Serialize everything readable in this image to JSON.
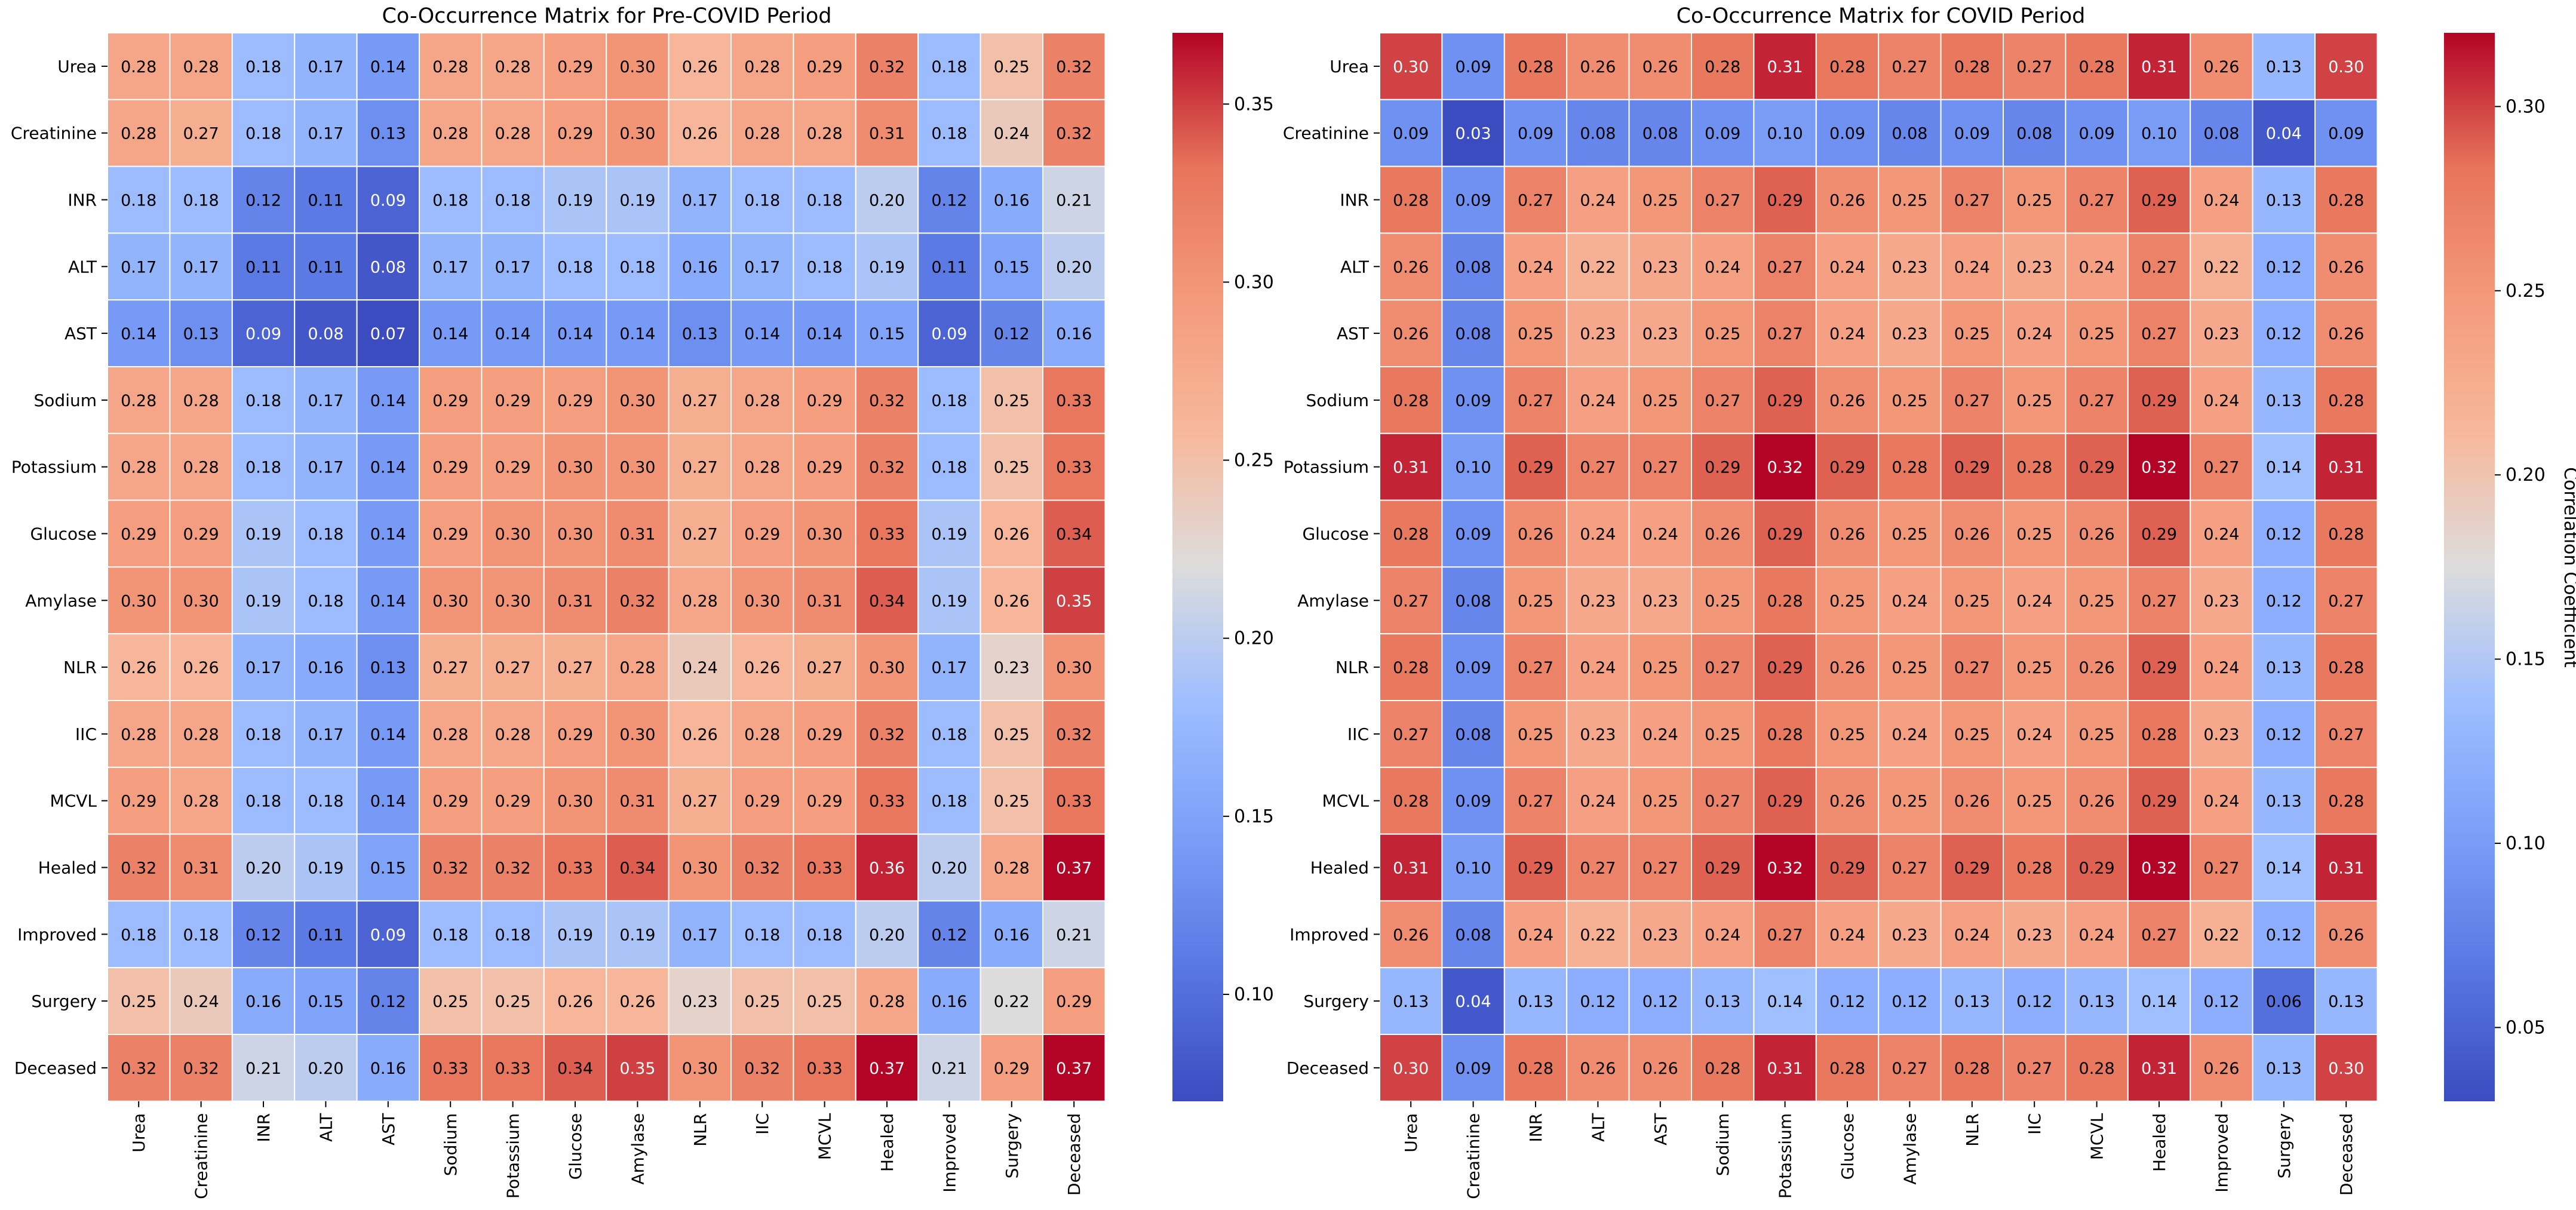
{
  "chart_data": [
    {
      "type": "heatmap",
      "title": "Co-Occurrence Matrix for Pre-COVID Period",
      "xlabel": "",
      "ylabel": "",
      "colormap": "coolwarm",
      "rows": [
        "Urea",
        "Creatinine",
        "INR",
        "ALT",
        "AST",
        "Sodium",
        "Potassium",
        "Glucose",
        "Amylase",
        "NLR",
        "IIC",
        "MCVL",
        "Healed",
        "Improved",
        "Surgery",
        "Deceased"
      ],
      "cols": [
        "Urea",
        "Creatinine",
        "INR",
        "ALT",
        "AST",
        "Sodium",
        "Potassium",
        "Glucose",
        "Amylase",
        "NLR",
        "IIC",
        "MCVL",
        "Healed",
        "Improved",
        "Surgery",
        "Deceased"
      ],
      "values": [
        [
          0.28,
          0.28,
          0.18,
          0.17,
          0.14,
          0.28,
          0.28,
          0.29,
          0.3,
          0.26,
          0.28,
          0.29,
          0.32,
          0.18,
          0.25,
          0.32
        ],
        [
          0.28,
          0.27,
          0.18,
          0.17,
          0.13,
          0.28,
          0.28,
          0.29,
          0.3,
          0.26,
          0.28,
          0.28,
          0.31,
          0.18,
          0.24,
          0.32
        ],
        [
          0.18,
          0.18,
          0.12,
          0.11,
          0.09,
          0.18,
          0.18,
          0.19,
          0.19,
          0.17,
          0.18,
          0.18,
          0.2,
          0.12,
          0.16,
          0.21
        ],
        [
          0.17,
          0.17,
          0.11,
          0.11,
          0.08,
          0.17,
          0.17,
          0.18,
          0.18,
          0.16,
          0.17,
          0.18,
          0.19,
          0.11,
          0.15,
          0.2
        ],
        [
          0.14,
          0.13,
          0.09,
          0.08,
          0.07,
          0.14,
          0.14,
          0.14,
          0.14,
          0.13,
          0.14,
          0.14,
          0.15,
          0.09,
          0.12,
          0.16
        ],
        [
          0.28,
          0.28,
          0.18,
          0.17,
          0.14,
          0.29,
          0.29,
          0.29,
          0.3,
          0.27,
          0.28,
          0.29,
          0.32,
          0.18,
          0.25,
          0.33
        ],
        [
          0.28,
          0.28,
          0.18,
          0.17,
          0.14,
          0.29,
          0.29,
          0.3,
          0.3,
          0.27,
          0.28,
          0.29,
          0.32,
          0.18,
          0.25,
          0.33
        ],
        [
          0.29,
          0.29,
          0.19,
          0.18,
          0.14,
          0.29,
          0.3,
          0.3,
          0.31,
          0.27,
          0.29,
          0.3,
          0.33,
          0.19,
          0.26,
          0.34
        ],
        [
          0.3,
          0.3,
          0.19,
          0.18,
          0.14,
          0.3,
          0.3,
          0.31,
          0.32,
          0.28,
          0.3,
          0.31,
          0.34,
          0.19,
          0.26,
          0.35
        ],
        [
          0.26,
          0.26,
          0.17,
          0.16,
          0.13,
          0.27,
          0.27,
          0.27,
          0.28,
          0.24,
          0.26,
          0.27,
          0.3,
          0.17,
          0.23,
          0.3
        ],
        [
          0.28,
          0.28,
          0.18,
          0.17,
          0.14,
          0.28,
          0.28,
          0.29,
          0.3,
          0.26,
          0.28,
          0.29,
          0.32,
          0.18,
          0.25,
          0.32
        ],
        [
          0.29,
          0.28,
          0.18,
          0.18,
          0.14,
          0.29,
          0.29,
          0.3,
          0.31,
          0.27,
          0.29,
          0.29,
          0.33,
          0.18,
          0.25,
          0.33
        ],
        [
          0.32,
          0.31,
          0.2,
          0.19,
          0.15,
          0.32,
          0.32,
          0.33,
          0.34,
          0.3,
          0.32,
          0.33,
          0.36,
          0.2,
          0.28,
          0.37
        ],
        [
          0.18,
          0.18,
          0.12,
          0.11,
          0.09,
          0.18,
          0.18,
          0.19,
          0.19,
          0.17,
          0.18,
          0.18,
          0.2,
          0.12,
          0.16,
          0.21
        ],
        [
          0.25,
          0.24,
          0.16,
          0.15,
          0.12,
          0.25,
          0.25,
          0.26,
          0.26,
          0.23,
          0.25,
          0.25,
          0.28,
          0.16,
          0.22,
          0.29
        ],
        [
          0.32,
          0.32,
          0.21,
          0.2,
          0.16,
          0.33,
          0.33,
          0.34,
          0.35,
          0.3,
          0.32,
          0.33,
          0.37,
          0.21,
          0.29,
          0.37
        ]
      ],
      "vmin": 0.07,
      "vmax": 0.37,
      "colorbar": {
        "ticks": [
          0.1,
          0.15,
          0.2,
          0.25,
          0.3,
          0.35
        ],
        "tick_labels": [
          "0.10",
          "0.15",
          "0.20",
          "0.25",
          "0.30",
          "0.35"
        ],
        "label": ""
      }
    },
    {
      "type": "heatmap",
      "title": "Co-Occurrence Matrix for COVID Period",
      "xlabel": "",
      "ylabel": "",
      "colormap": "coolwarm",
      "rows": [
        "Urea",
        "Creatinine",
        "INR",
        "ALT",
        "AST",
        "Sodium",
        "Potassium",
        "Glucose",
        "Amylase",
        "NLR",
        "IIC",
        "MCVL",
        "Healed",
        "Improved",
        "Surgery",
        "Deceased"
      ],
      "cols": [
        "Urea",
        "Creatinine",
        "INR",
        "ALT",
        "AST",
        "Sodium",
        "Potassium",
        "Glucose",
        "Amylase",
        "NLR",
        "IIC",
        "MCVL",
        "Healed",
        "Improved",
        "Surgery",
        "Deceased"
      ],
      "values": [
        [
          0.3,
          0.09,
          0.28,
          0.26,
          0.26,
          0.28,
          0.31,
          0.28,
          0.27,
          0.28,
          0.27,
          0.28,
          0.31,
          0.26,
          0.13,
          0.3
        ],
        [
          0.09,
          0.03,
          0.09,
          0.08,
          0.08,
          0.09,
          0.1,
          0.09,
          0.08,
          0.09,
          0.08,
          0.09,
          0.1,
          0.08,
          0.04,
          0.09
        ],
        [
          0.28,
          0.09,
          0.27,
          0.24,
          0.25,
          0.27,
          0.29,
          0.26,
          0.25,
          0.27,
          0.25,
          0.27,
          0.29,
          0.24,
          0.13,
          0.28
        ],
        [
          0.26,
          0.08,
          0.24,
          0.22,
          0.23,
          0.24,
          0.27,
          0.24,
          0.23,
          0.24,
          0.23,
          0.24,
          0.27,
          0.22,
          0.12,
          0.26
        ],
        [
          0.26,
          0.08,
          0.25,
          0.23,
          0.23,
          0.25,
          0.27,
          0.24,
          0.23,
          0.25,
          0.24,
          0.25,
          0.27,
          0.23,
          0.12,
          0.26
        ],
        [
          0.28,
          0.09,
          0.27,
          0.24,
          0.25,
          0.27,
          0.29,
          0.26,
          0.25,
          0.27,
          0.25,
          0.27,
          0.29,
          0.24,
          0.13,
          0.28
        ],
        [
          0.31,
          0.1,
          0.29,
          0.27,
          0.27,
          0.29,
          0.32,
          0.29,
          0.28,
          0.29,
          0.28,
          0.29,
          0.32,
          0.27,
          0.14,
          0.31
        ],
        [
          0.28,
          0.09,
          0.26,
          0.24,
          0.24,
          0.26,
          0.29,
          0.26,
          0.25,
          0.26,
          0.25,
          0.26,
          0.29,
          0.24,
          0.12,
          0.28
        ],
        [
          0.27,
          0.08,
          0.25,
          0.23,
          0.23,
          0.25,
          0.28,
          0.25,
          0.24,
          0.25,
          0.24,
          0.25,
          0.27,
          0.23,
          0.12,
          0.27
        ],
        [
          0.28,
          0.09,
          0.27,
          0.24,
          0.25,
          0.27,
          0.29,
          0.26,
          0.25,
          0.27,
          0.25,
          0.26,
          0.29,
          0.24,
          0.13,
          0.28
        ],
        [
          0.27,
          0.08,
          0.25,
          0.23,
          0.24,
          0.25,
          0.28,
          0.25,
          0.24,
          0.25,
          0.24,
          0.25,
          0.28,
          0.23,
          0.12,
          0.27
        ],
        [
          0.28,
          0.09,
          0.27,
          0.24,
          0.25,
          0.27,
          0.29,
          0.26,
          0.25,
          0.26,
          0.25,
          0.26,
          0.29,
          0.24,
          0.13,
          0.28
        ],
        [
          0.31,
          0.1,
          0.29,
          0.27,
          0.27,
          0.29,
          0.32,
          0.29,
          0.27,
          0.29,
          0.28,
          0.29,
          0.32,
          0.27,
          0.14,
          0.31
        ],
        [
          0.26,
          0.08,
          0.24,
          0.22,
          0.23,
          0.24,
          0.27,
          0.24,
          0.23,
          0.24,
          0.23,
          0.24,
          0.27,
          0.22,
          0.12,
          0.26
        ],
        [
          0.13,
          0.04,
          0.13,
          0.12,
          0.12,
          0.13,
          0.14,
          0.12,
          0.12,
          0.13,
          0.12,
          0.13,
          0.14,
          0.12,
          0.06,
          0.13
        ],
        [
          0.3,
          0.09,
          0.28,
          0.26,
          0.26,
          0.28,
          0.31,
          0.28,
          0.27,
          0.28,
          0.27,
          0.28,
          0.31,
          0.26,
          0.13,
          0.3
        ]
      ],
      "vmin": 0.03,
      "vmax": 0.32,
      "colorbar": {
        "ticks": [
          0.05,
          0.1,
          0.15,
          0.2,
          0.25,
          0.3
        ],
        "tick_labels": [
          "0.05",
          "0.10",
          "0.15",
          "0.20",
          "0.25",
          "0.30"
        ],
        "label": "Correlation Coefficient"
      }
    }
  ]
}
